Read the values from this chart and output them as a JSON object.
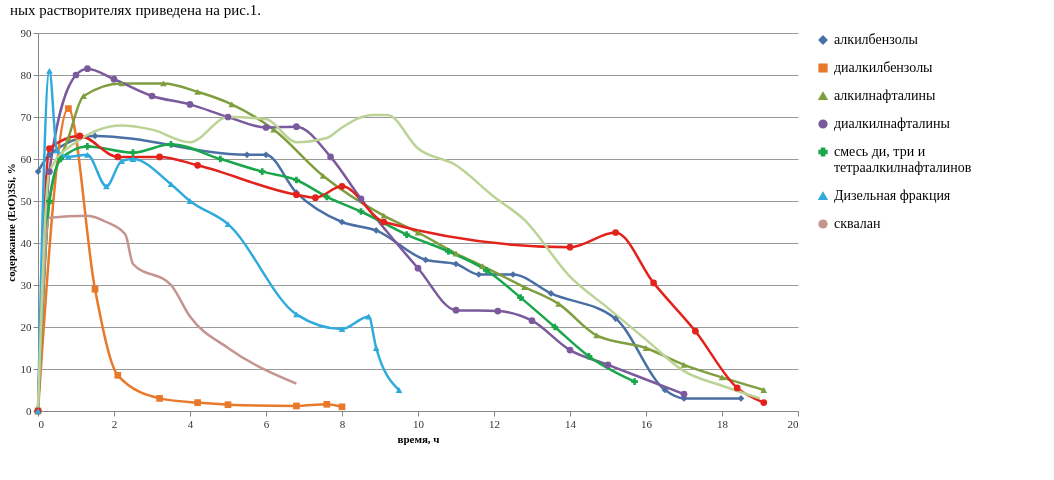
{
  "chart_data": {
    "type": "line",
    "annotations": [
      "ных растворителях приведена на рис.1."
    ],
    "xlabel": "время, ч",
    "ylabel": "содержание (EtO)3Si, %",
    "xlim": [
      0,
      20
    ],
    "xticks": [
      0,
      2,
      4,
      6,
      8,
      10,
      12,
      14,
      16,
      18,
      20
    ],
    "ylim": [
      0,
      90
    ],
    "yticks": [
      0,
      10,
      20,
      30,
      40,
      50,
      60,
      70,
      80,
      90
    ],
    "grid": "y",
    "legend": "right",
    "series": [
      {
        "name": "алкилбензолы",
        "color": "#4a6fa5",
        "marker": "diamond",
        "x": [
          0,
          0.3,
          1.5,
          5.5,
          6,
          6.8,
          8,
          8.9,
          10.2,
          11,
          11.6,
          12.5,
          13.5,
          15.2,
          16.5,
          17,
          18.5
        ],
        "values": [
          57,
          61,
          65.5,
          61,
          61,
          52,
          45,
          43,
          36,
          35,
          32.5,
          32.5,
          28,
          22,
          5,
          3,
          3
        ]
      },
      {
        "name": "диалкилбензолы",
        "color": "#e8792b",
        "marker": "square",
        "x": [
          0,
          0.8,
          1.5,
          2.1,
          3.2,
          4.2,
          5,
          6.8,
          7.6,
          8
        ],
        "values": [
          0,
          72,
          29,
          8.5,
          3,
          2,
          1.5,
          1.2,
          1.6,
          1
        ]
      },
      {
        "name": "алкилнафталины",
        "color": "#7f9e3f",
        "marker": "triangle",
        "x": [
          0,
          0.3,
          0.8,
          1.2,
          2.2,
          3.3,
          4.2,
          5.1,
          6.2,
          7.5,
          9.1,
          10,
          11,
          11.7,
          12.8,
          13.7,
          14.7,
          16,
          17,
          18,
          19.1
        ],
        "values": [
          0,
          50,
          65,
          75,
          78,
          78,
          76,
          73,
          67,
          56,
          46.5,
          42.5,
          37.5,
          34.5,
          29.5,
          25.5,
          18,
          15,
          11,
          8,
          5
        ]
      },
      {
        "name": "диалкилнафталины",
        "color": "#7a5a9c",
        "marker": "circle",
        "x": [
          0,
          0.3,
          1,
          1.3,
          2,
          3,
          4,
          5,
          6,
          6.8,
          7.7,
          8.5,
          10,
          11,
          12.1,
          13,
          14,
          15,
          17
        ],
        "values": [
          0,
          57,
          80,
          81.5,
          79,
          75,
          73,
          70,
          67.5,
          67.7,
          60.5,
          50.5,
          34,
          24,
          23.8,
          21.5,
          14.5,
          11,
          4
        ]
      },
      {
        "name": "смесь ди, три и тетраалкилнафталинов",
        "color": "#1aa64a",
        "marker": "cross",
        "x": [
          0,
          0.3,
          0.6,
          1.3,
          2.5,
          3.5,
          4.8,
          5.9,
          6.8,
          7.6,
          8.5,
          9.7,
          10.8,
          11.8,
          12.7,
          13.6,
          14.5,
          15.7
        ],
        "values": [
          0,
          50,
          60,
          63,
          61.5,
          63.5,
          60,
          57,
          55,
          51,
          47.5,
          42,
          38,
          33.5,
          27,
          20,
          13,
          7
        ]
      },
      {
        "color": "#e3221c",
        "marker": "circle",
        "x": [
          0,
          0.3,
          1.1,
          2.1,
          3.2,
          4.2,
          6.8,
          7.3,
          8,
          9.1,
          14,
          15.2,
          16.2,
          17.3,
          18.4,
          19.1
        ],
        "values": [
          0,
          62.5,
          65.5,
          60.5,
          60.5,
          58.5,
          51.5,
          50.8,
          53.5,
          45,
          39,
          42.5,
          30.5,
          19,
          5.5,
          2
        ]
      },
      {
        "name": "Дизельная фракция",
        "color": "#2eaadc",
        "marker": "triangle",
        "x": [
          0,
          0.3,
          0.5,
          0.8,
          1.3,
          1.8,
          2.2,
          2.5,
          3.5,
          4,
          5,
          6.8,
          8,
          8.7,
          8.9,
          9.5
        ],
        "values": [
          0,
          81,
          62,
          60.5,
          61,
          53.5,
          59.5,
          60,
          54,
          50,
          44.5,
          23,
          19.5,
          22.5,
          15,
          5
        ]
      },
      {
        "name": "сквалан",
        "color": "#c4948f",
        "marker": "none",
        "x": [
          0,
          0.3,
          1.3,
          1.8,
          2.3,
          2.5,
          3.5,
          4,
          5,
          6.8
        ],
        "values": [
          0,
          46,
          46.5,
          45,
          42,
          35,
          30,
          22.5,
          15,
          6.5
        ]
      },
      {
        "color": "#bcd396",
        "marker": "none",
        "x": [
          0,
          0.3,
          1,
          2.2,
          3,
          4,
          5,
          6,
          6.8,
          7.6,
          8,
          8.8,
          9.2,
          10,
          11,
          12,
          12.8,
          14,
          15,
          16,
          17,
          18,
          19
        ],
        "values": [
          0,
          57,
          64,
          68,
          67,
          64,
          70,
          69.5,
          64,
          65,
          67.5,
          70.5,
          70.5,
          62.5,
          58.5,
          51,
          45.5,
          32,
          24.5,
          17,
          9.5,
          6,
          3
        ]
      }
    ]
  }
}
